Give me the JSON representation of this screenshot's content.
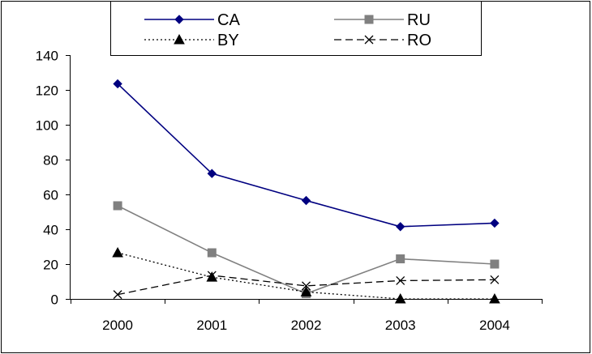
{
  "chart_data": {
    "type": "line",
    "title": "",
    "xlabel": "",
    "ylabel": "",
    "categories": [
      "2000",
      "2001",
      "2002",
      "2003",
      "2004"
    ],
    "ylim": [
      0,
      140
    ],
    "yticks": [
      "0",
      "20",
      "40",
      "60",
      "80",
      "100",
      "120",
      "140"
    ],
    "grid": false,
    "legend_position": "top",
    "series": [
      {
        "name": "CA",
        "values": [
          123.5,
          72,
          56.5,
          41.5,
          43.5
        ],
        "color": "#000080",
        "marker": "diamond",
        "dash": "solid"
      },
      {
        "name": "RU",
        "values": [
          53.5,
          26.5,
          3,
          23,
          20
        ],
        "color": "#808080",
        "marker": "square",
        "dash": "solid"
      },
      {
        "name": "BY",
        "values": [
          26.5,
          12.5,
          4,
          0,
          0
        ],
        "color": "#000000",
        "marker": "triangle",
        "dash": "dotted"
      },
      {
        "name": "RO",
        "values": [
          2.5,
          13.5,
          7.5,
          10.5,
          11
        ],
        "color": "#000000",
        "marker": "x",
        "dash": "dashed"
      }
    ]
  }
}
